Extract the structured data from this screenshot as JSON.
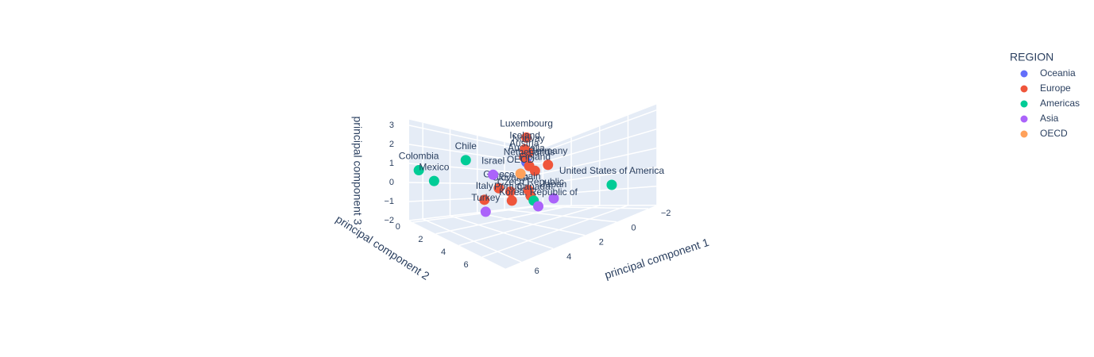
{
  "chart_data": {
    "type": "scatter3d",
    "xlabel": "principal component 1",
    "ylabel": "principal component 2",
    "zlabel": "principal component 3",
    "xlim": [
      -2.5,
      7
    ],
    "ylim": [
      -0.3,
      8
    ],
    "zlim": [
      -2,
      3.3
    ],
    "xticks": [
      {
        "value": -2,
        "label": "−2"
      },
      0,
      2,
      4,
      6
    ],
    "yticks": [
      0,
      2,
      4,
      6
    ],
    "zticks": [
      {
        "value": -2,
        "label": "−2"
      },
      {
        "value": -1,
        "label": "−1"
      },
      0,
      1,
      2,
      3
    ],
    "grid": true,
    "legend_title": "REGION",
    "legend_position": "top-right",
    "series": [
      {
        "name": "Oceania",
        "color": "#636efa",
        "labels": [
          "Australia"
        ],
        "x": [
          1.3
        ],
        "y": [
          2.7
        ],
        "z": [
          1.58
        ]
      },
      {
        "name": "Europe",
        "color": "#ef553b",
        "labels": [
          "Luxembourg",
          "Iceland",
          "Norway",
          "Austria",
          "Germany",
          "Netherlands",
          "Finland",
          "Slovakia",
          "Greece",
          "Portugal",
          "Spain",
          "Czech Republic",
          "Italy"
        ],
        "x": [
          2.45,
          1.4,
          1.15,
          1.45,
          -0.2,
          1.1,
          0.7,
          2.4,
          3.2,
          2.3,
          1.15,
          1.0,
          4.2
        ],
        "y": [
          4,
          2.7,
          2.7,
          2.7,
          2.7,
          2.7,
          2.7,
          2.7,
          2.7,
          2.7,
          2.7,
          2.7,
          2.7
        ],
        "z": [
          3.2,
          2.39,
          2.17,
          1.9,
          1.26,
          1.31,
          0.96,
          -0.13,
          0.18,
          -0.7,
          -0.23,
          -0.61,
          -0.36
        ]
      },
      {
        "name": "Americas",
        "color": "#00cc96",
        "labels": [
          "Colombia",
          "Mexico",
          "Chile",
          "United States of America",
          "Canada"
        ],
        "x": [
          6.55,
          5.87,
          4.03,
          -2.36,
          3.4
        ],
        "y": [
          0,
          0.5,
          1,
          5,
          5.7
        ],
        "z": [
          0.75,
          0.31,
          1.63,
          -0.67,
          -0.03
        ]
      },
      {
        "name": "Asia",
        "color": "#ab63fa",
        "labels": [
          "Israel",
          "Turkey",
          "Japan",
          "Korea, Republic of"
        ],
        "x": [
          3.6,
          5.2,
          0.6,
          3.1
        ],
        "y": [
          2.7,
          4,
          4,
          5.7
        ],
        "z": [
          1.02,
          -0.57,
          -0.76,
          -0.42
        ]
      },
      {
        "name": "OECD",
        "color": "#ffa15a",
        "labels": [
          "OECD"
        ],
        "x": [
          1.7
        ],
        "y": [
          2.7
        ],
        "z": [
          0.89
        ]
      }
    ]
  }
}
